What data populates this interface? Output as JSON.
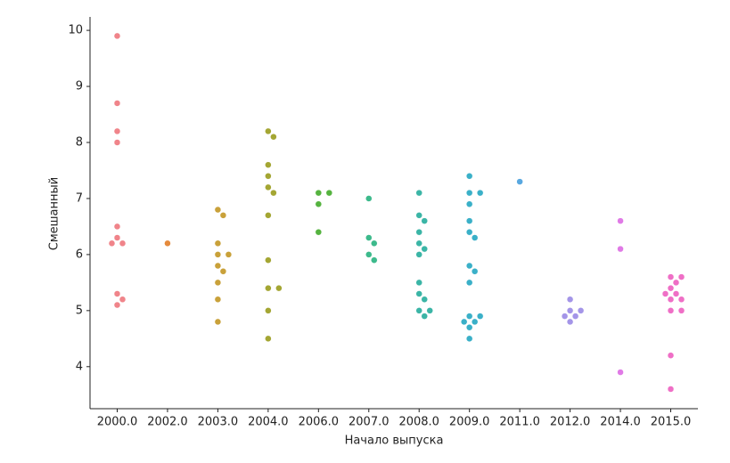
{
  "chart_data": {
    "type": "swarm",
    "xlabel": "Начало выпуска",
    "ylabel": "Смешанный",
    "ylim": [
      3.25,
      10.24
    ],
    "yticks": [
      4,
      5,
      6,
      7,
      8,
      9,
      10
    ],
    "groups": [
      {
        "category": "2000.0",
        "color": "#f0848a",
        "values": [
          9.9,
          8.7,
          8.2,
          8.0,
          6.5,
          6.3,
          6.2,
          6.2,
          5.3,
          5.2,
          5.1
        ]
      },
      {
        "category": "2002.0",
        "color": "#e58b3d",
        "values": [
          6.2
        ]
      },
      {
        "category": "2003.0",
        "color": "#c9a13a",
        "values": [
          6.8,
          6.7,
          6.2,
          6.0,
          6.0,
          5.8,
          5.7,
          5.5,
          5.2,
          4.8
        ]
      },
      {
        "category": "2004.0",
        "color": "#a4a633",
        "values": [
          8.2,
          8.1,
          7.6,
          7.4,
          7.2,
          7.1,
          6.7,
          5.9,
          5.4,
          5.4,
          5.0,
          4.5
        ]
      },
      {
        "category": "2006.0",
        "color": "#55b33f",
        "values": [
          7.1,
          7.1,
          6.9,
          6.4
        ]
      },
      {
        "category": "2007.0",
        "color": "#3dba8c",
        "values": [
          7.0,
          6.3,
          6.2,
          6.0,
          5.9
        ]
      },
      {
        "category": "2008.0",
        "color": "#3bb5a6",
        "values": [
          7.1,
          6.7,
          6.6,
          6.4,
          6.2,
          6.1,
          6.0,
          5.5,
          5.3,
          5.2,
          5.0,
          5.0,
          4.9
        ]
      },
      {
        "category": "2009.0",
        "color": "#3ab0c8",
        "values": [
          7.4,
          7.1,
          7.1,
          6.9,
          6.6,
          6.4,
          6.3,
          5.8,
          5.7,
          5.5,
          4.9,
          4.9,
          4.8,
          4.8,
          4.7,
          4.5
        ]
      },
      {
        "category": "2011.0",
        "color": "#59a8e0",
        "values": [
          7.3
        ]
      },
      {
        "category": "2012.0",
        "color": "#a495e8",
        "values": [
          5.2,
          5.0,
          5.0,
          4.9,
          4.9,
          4.8
        ]
      },
      {
        "category": "2014.0",
        "color": "#e07ae6",
        "values": [
          6.6,
          6.1,
          3.9
        ]
      },
      {
        "category": "2015.0",
        "color": "#ef6fc6",
        "values": [
          5.6,
          5.6,
          5.5,
          5.4,
          5.3,
          5.3,
          5.2,
          5.2,
          5.0,
          5.0,
          4.2,
          3.6
        ]
      }
    ]
  }
}
